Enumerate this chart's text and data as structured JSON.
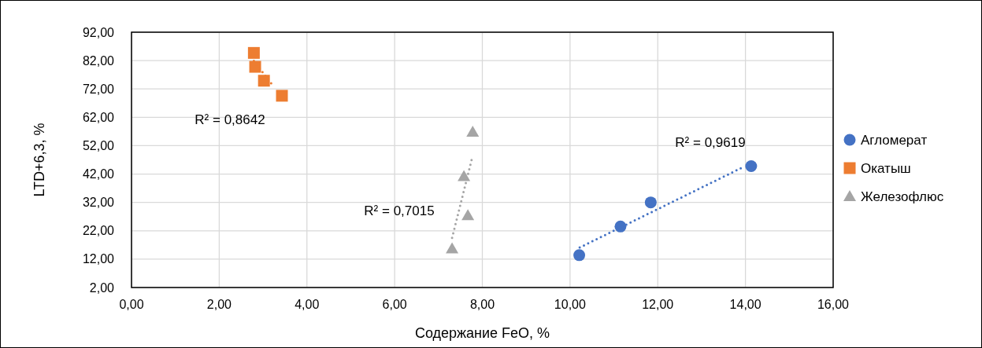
{
  "chart_data": {
    "type": "scatter",
    "xlabel": "Содержание FeO, %",
    "ylabel": "LTD+6,3, %",
    "xlim": [
      0,
      16
    ],
    "xticks": [
      {
        "value": 0,
        "label": "0,00"
      },
      {
        "value": 2,
        "label": "2,00"
      },
      {
        "value": 4,
        "label": "4,00"
      },
      {
        "value": 6,
        "label": "6,00"
      },
      {
        "value": 8,
        "label": "8,00"
      },
      {
        "value": 10,
        "label": "10,00"
      },
      {
        "value": 12,
        "label": "12,00"
      },
      {
        "value": 14,
        "label": "14,00"
      },
      {
        "value": 16,
        "label": "16,00"
      }
    ],
    "ylim": [
      2,
      92
    ],
    "yticks": [
      {
        "value": 2,
        "label": "2,00"
      },
      {
        "value": 12,
        "label": "12,00"
      },
      {
        "value": 22,
        "label": "22,00"
      },
      {
        "value": 32,
        "label": "32,00"
      },
      {
        "value": 42,
        "label": "42,00"
      },
      {
        "value": 52,
        "label": "52,00"
      },
      {
        "value": 62,
        "label": "62,00"
      },
      {
        "value": 72,
        "label": "72,00"
      },
      {
        "value": 82,
        "label": "82,00"
      },
      {
        "value": 92,
        "label": "92,00"
      }
    ],
    "grid": true,
    "legend": "right",
    "series": [
      {
        "name": "Агломерат",
        "color": "#4472c4",
        "marker": "circle",
        "x": [
          10.21,
          11.15,
          11.84,
          14.13
        ],
        "values": [
          13.4,
          23.5,
          32.0,
          44.8
        ]
      },
      {
        "name": "Окатыш",
        "color": "#ed7d31",
        "marker": "square",
        "x": [
          2.79,
          2.82,
          3.02,
          3.43
        ],
        "values": [
          84.7,
          79.8,
          74.9,
          69.6
        ]
      },
      {
        "name": "Железофлюс",
        "color": "#a5a5a5",
        "marker": "triangle",
        "x": [
          7.31,
          7.58,
          7.67,
          7.78
        ],
        "values": [
          15.7,
          41.2,
          27.4,
          56.8
        ]
      },
      {
        "type": "line",
        "color": "#4472c4",
        "line_style": "dotted",
        "marker": "none",
        "x": [
          10.22,
          13.94
        ],
        "values": [
          16.1,
          44.4
        ]
      },
      {
        "type": "line",
        "color": "#ed7d31",
        "line_style": "dotted",
        "marker": "none",
        "x": [
          2.79,
          3.25
        ],
        "values": [
          81.9,
          72.7
        ]
      },
      {
        "type": "line",
        "color": "#a5a5a5",
        "line_style": "dotted",
        "marker": "none",
        "x": [
          7.31,
          7.78
        ],
        "values": [
          19.5,
          48.5
        ]
      }
    ],
    "annotations": [
      "R² = 0,8642",
      "R² = 0,7015",
      "R² = 0,9619"
    ]
  }
}
